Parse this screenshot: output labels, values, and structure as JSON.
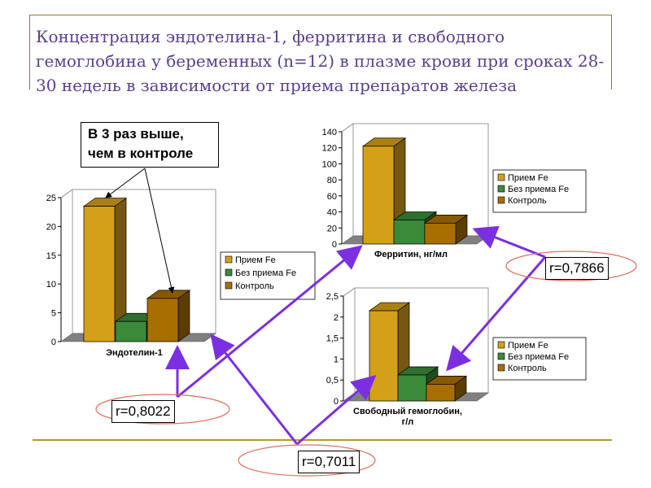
{
  "title": "Концентрация эндотелина-1, ферритина и свободного гемоглобина у беременных (n=12) в плазме крови при сроках 28-30 недель в зависимости от приема препаратов железа",
  "callout": "В 3 раз выше, чем в контроле",
  "correlations": {
    "r1": "r=0,8022",
    "r2": "r=0,7011",
    "r3": "r=0,7866"
  },
  "colors": {
    "series": [
      "#d4a017",
      "#3a8a3a",
      "#a86e00"
    ],
    "arrow": "#7b2fe0",
    "ellipse": "#e0705a"
  },
  "chart_data": [
    {
      "type": "bar",
      "xlabel": "Эндотелин-1",
      "ylim": [
        0,
        25
      ],
      "yticks": [
        "0",
        "5",
        "10",
        "15",
        "20",
        "25"
      ],
      "series": [
        {
          "name": "Прием Fe",
          "values": [
            23.5
          ]
        },
        {
          "name": "Без приема Fe",
          "values": [
            3.5
          ]
        },
        {
          "name": "Контроль",
          "values": [
            7.5
          ]
        }
      ]
    },
    {
      "type": "bar",
      "xlabel": "Ферритин, нг/мл",
      "ylim": [
        0,
        140
      ],
      "yticks": [
        "0",
        "20",
        "40",
        "60",
        "80",
        "100",
        "120",
        "140"
      ],
      "series": [
        {
          "name": "Прием Fe",
          "values": [
            122
          ]
        },
        {
          "name": "Без приема Fe",
          "values": [
            30
          ]
        },
        {
          "name": "Контроль",
          "values": [
            26
          ]
        }
      ]
    },
    {
      "type": "bar",
      "xlabel": "Свободный гемоглобин, г/л",
      "ylim": [
        0,
        2.5
      ],
      "yticks": [
        "0",
        "0,5",
        "1",
        "1,5",
        "2",
        "2,5"
      ],
      "series": [
        {
          "name": "Прием Fe",
          "values": [
            2.15
          ]
        },
        {
          "name": "Без приема Fe",
          "values": [
            0.62
          ]
        },
        {
          "name": "Контроль",
          "values": [
            0.4
          ]
        }
      ]
    }
  ]
}
